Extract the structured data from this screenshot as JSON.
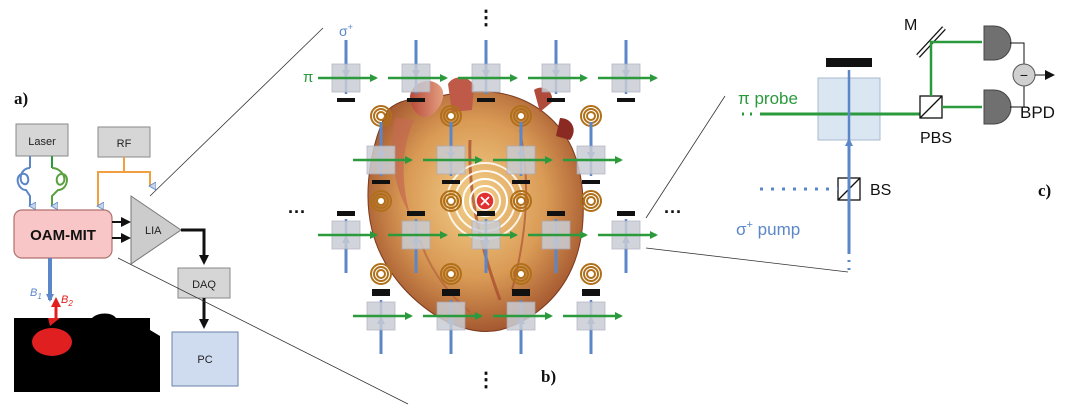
{
  "panel_a": {
    "label": "a)",
    "laser": "Laser",
    "rf": "RF",
    "oam": "OAM-MIT",
    "lia": "LIA",
    "daq": "DAQ",
    "pc": "PC",
    "b1": "B",
    "b1_sub": "1",
    "b2": "B",
    "b2_sub": "2"
  },
  "panel_b": {
    "label": "b)",
    "sigma_base": "σ",
    "sigma_sup": "+",
    "pi": "π",
    "ellipsis": "···",
    "vellipsis": "⋮"
  },
  "panel_c": {
    "label": "c)",
    "m": "M",
    "pi_probe": "π probe",
    "pbs": "PBS",
    "bpd": "BPD",
    "bs": "BS",
    "sigma_pump_base": "σ",
    "sigma_pump_sup": "+",
    "pump": " pump",
    "minus": "−"
  },
  "colors": {
    "blue": "#5b87c8",
    "green": "#2a9a3c",
    "orange": "#f0a040",
    "teal": "#3aa7a0",
    "red": "#e02020",
    "oam_fill": "#f8c6c6",
    "pc_fill": "#cfdcf0",
    "cell_fill": "#c9cdd4"
  }
}
